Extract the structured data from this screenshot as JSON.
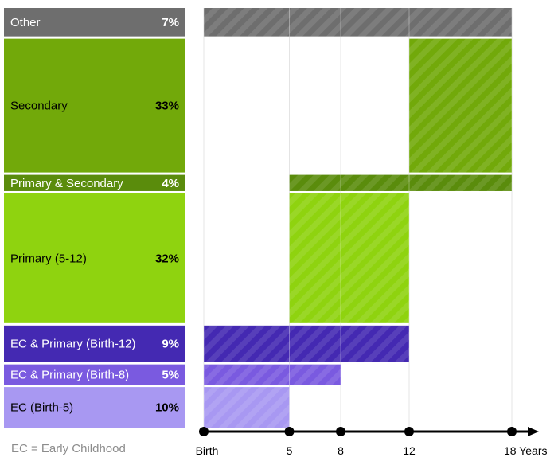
{
  "chart_data": {
    "type": "bar",
    "subtype": "horizontal-stacked-share-with-age-span",
    "xlabel": "Years",
    "x_axis": {
      "min": 0,
      "max": 18,
      "tick_values": [
        0,
        5,
        8,
        12,
        18
      ],
      "tick_labels": [
        "Birth",
        "5",
        "8",
        "12",
        "18 Years"
      ]
    },
    "grid": true,
    "categories": [
      {
        "label": "Other",
        "percent_label": "7%",
        "value": 7,
        "span": [
          0,
          18
        ],
        "fill": "#6e6e6e",
        "label_color": "#ffffff",
        "percent_color": "#ffffff"
      },
      {
        "label": "Secondary",
        "percent_label": "33%",
        "value": 33,
        "span": [
          12,
          18
        ],
        "fill": "#72a90a",
        "label_color": "#000000",
        "percent_color": "#000000"
      },
      {
        "label": "Primary & Secondary",
        "percent_label": "4%",
        "value": 4,
        "span": [
          5,
          18
        ],
        "fill": "#5a8c0c",
        "label_color": "#ffffff",
        "percent_color": "#ffffff"
      },
      {
        "label": "Primary (5-12)",
        "percent_label": "32%",
        "value": 32,
        "span": [
          5,
          12
        ],
        "fill": "#8fd30f",
        "label_color": "#000000",
        "percent_color": "#000000"
      },
      {
        "label": "EC & Primary (Birth-12)",
        "percent_label": "9%",
        "value": 9,
        "span": [
          0,
          12
        ],
        "fill": "#4429b2",
        "label_color": "#ffffff",
        "percent_color": "#ffffff"
      },
      {
        "label": "EC & Primary (Birth-8)",
        "percent_label": "5%",
        "value": 5,
        "span": [
          0,
          8
        ],
        "fill": "#7a5ae0",
        "label_color": "#ffffff",
        "percent_color": "#ffffff"
      },
      {
        "label": "EC (Birth-5)",
        "percent_label": "10%",
        "value": 10,
        "span": [
          0,
          5
        ],
        "fill": "#a898f2",
        "label_color": "#000000",
        "percent_color": "#000000"
      }
    ],
    "footnote": "EC = Early Childhood"
  }
}
